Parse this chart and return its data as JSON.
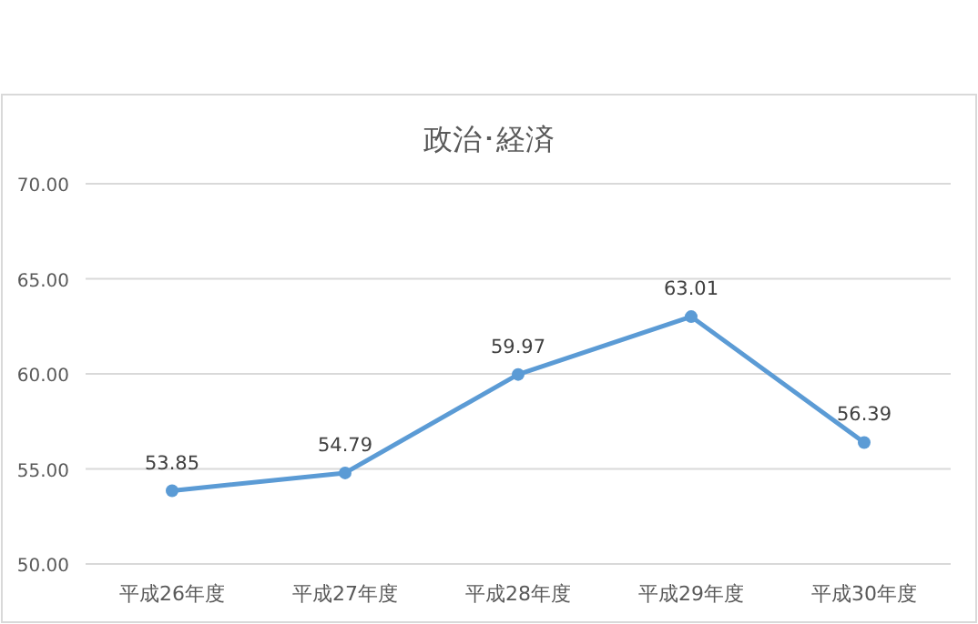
{
  "chart_data": {
    "type": "line",
    "title": "政治･経済",
    "categories": [
      "平成26年度",
      "平成27年度",
      "平成28年度",
      "平成29年度",
      "平成30年度"
    ],
    "series": [
      {
        "color": "#5b9bd5",
        "values": [
          53.85,
          54.79,
          59.97,
          63.01,
          56.39
        ]
      }
    ],
    "ylim": [
      50,
      70
    ],
    "yticks": [
      {
        "value": 50,
        "label": "50.00"
      },
      {
        "value": 55,
        "label": "55.00"
      },
      {
        "value": 60,
        "label": "60.00"
      },
      {
        "value": 65,
        "label": "65.00"
      },
      {
        "value": 70,
        "label": "70.00"
      }
    ],
    "grid": "y",
    "marker": "circle",
    "data_labels": true
  }
}
